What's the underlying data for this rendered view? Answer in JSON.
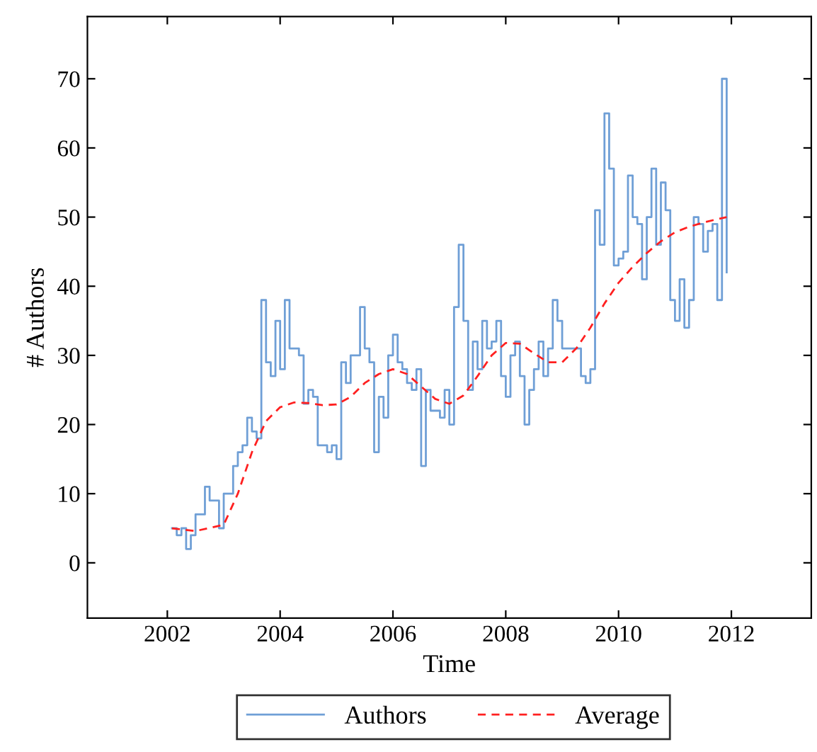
{
  "chart_data": {
    "type": "step",
    "xlabel": "Time",
    "ylabel": "# Authors",
    "x": [
      "2002-02",
      "2002-03",
      "2002-04",
      "2002-05",
      "2002-06",
      "2002-07",
      "2002-08",
      "2002-09",
      "2002-10",
      "2002-11",
      "2002-12",
      "2003-01",
      "2003-02",
      "2003-03",
      "2003-04",
      "2003-05",
      "2003-06",
      "2003-07",
      "2003-08",
      "2003-09",
      "2003-10",
      "2003-11",
      "2003-12",
      "2004-01",
      "2004-02",
      "2004-03",
      "2004-04",
      "2004-05",
      "2004-06",
      "2004-07",
      "2004-08",
      "2004-09",
      "2004-10",
      "2004-11",
      "2004-12",
      "2005-01",
      "2005-02",
      "2005-03",
      "2005-04",
      "2005-05",
      "2005-06",
      "2005-07",
      "2005-08",
      "2005-09",
      "2005-10",
      "2005-11",
      "2005-12",
      "2006-01",
      "2006-02",
      "2006-03",
      "2006-04",
      "2006-05",
      "2006-06",
      "2006-07",
      "2006-08",
      "2006-09",
      "2006-10",
      "2006-11",
      "2006-12",
      "2007-01",
      "2007-02",
      "2007-03",
      "2007-04",
      "2007-05",
      "2007-06",
      "2007-07",
      "2007-08",
      "2007-09",
      "2007-10",
      "2007-11",
      "2007-12",
      "2008-01",
      "2008-02",
      "2008-03",
      "2008-04",
      "2008-05",
      "2008-06",
      "2008-07",
      "2008-08",
      "2008-09",
      "2008-10",
      "2008-11",
      "2008-12",
      "2009-01",
      "2009-02",
      "2009-03",
      "2009-04",
      "2009-05",
      "2009-06",
      "2009-07",
      "2009-08",
      "2009-09",
      "2009-10",
      "2009-11",
      "2009-12",
      "2010-01",
      "2010-02",
      "2010-03",
      "2010-04",
      "2010-05",
      "2010-06",
      "2010-07",
      "2010-08",
      "2010-09",
      "2010-10",
      "2010-11",
      "2010-12",
      "2011-01",
      "2011-02",
      "2011-03",
      "2011-04",
      "2011-05",
      "2011-06",
      "2011-07",
      "2011-08",
      "2011-09",
      "2011-10",
      "2011-11",
      "2011-12"
    ],
    "series": [
      {
        "name": "Authors",
        "color": "#6f9fd6",
        "line_style": "solid",
        "values": [
          5,
          4,
          5,
          2,
          4,
          7,
          7,
          11,
          9,
          9,
          5,
          10,
          10,
          14,
          16,
          17,
          21,
          19,
          18,
          38,
          29,
          27,
          35,
          28,
          38,
          31,
          31,
          30,
          23,
          25,
          24,
          17,
          17,
          16,
          17,
          15,
          29,
          26,
          30,
          30,
          37,
          31,
          29,
          16,
          24,
          21,
          30,
          33,
          29,
          28,
          26,
          25,
          28,
          14,
          25,
          22,
          22,
          21,
          25,
          20,
          37,
          46,
          35,
          25,
          32,
          28,
          35,
          31,
          32,
          35,
          27,
          24,
          30,
          32,
          27,
          20,
          25,
          28,
          32,
          27,
          31,
          38,
          35,
          31,
          31,
          31,
          31,
          27,
          26,
          28,
          51,
          46,
          65,
          57,
          43,
          44,
          45,
          56,
          50,
          49,
          41,
          50,
          57,
          46,
          55,
          51,
          38,
          35,
          41,
          34,
          38,
          50,
          49,
          45,
          48,
          49,
          38,
          70,
          42
        ]
      },
      {
        "name": "Average",
        "type": "line",
        "color": "#ff2020",
        "line_style": "dashed",
        "x": [
          "2002-02",
          "2002-07",
          "2003-01",
          "2003-04",
          "2003-07",
          "2003-10",
          "2004-01",
          "2004-04",
          "2004-07",
          "2004-10",
          "2005-01",
          "2005-04",
          "2005-07",
          "2005-10",
          "2006-01",
          "2006-04",
          "2006-07",
          "2006-10",
          "2007-01",
          "2007-04",
          "2007-07",
          "2007-10",
          "2008-01",
          "2008-04",
          "2008-07",
          "2008-10",
          "2009-01",
          "2009-04",
          "2009-07",
          "2009-10",
          "2010-01",
          "2010-04",
          "2010-07",
          "2010-10",
          "2011-01",
          "2011-04",
          "2011-07",
          "2011-10",
          "2011-12"
        ],
        "values": [
          5,
          4.6,
          5.5,
          10,
          16,
          20.5,
          22.5,
          23.2,
          23.1,
          22.8,
          22.9,
          24,
          26,
          27.3,
          28,
          27.3,
          25.5,
          23.7,
          23,
          24.2,
          27,
          30,
          31.8,
          31.7,
          30.3,
          29,
          29,
          31,
          34,
          37.5,
          40.5,
          42.8,
          44.8,
          46.5,
          47.8,
          48.6,
          49.2,
          49.7,
          50
        ]
      }
    ],
    "xlim": [
      "2000-08",
      "2013-06"
    ],
    "xticks": [
      {
        "value": "2002",
        "label": "2002"
      },
      {
        "value": "2004",
        "label": "2004"
      },
      {
        "value": "2006",
        "label": "2006"
      },
      {
        "value": "2008",
        "label": "2008"
      },
      {
        "value": "2010",
        "label": "2010"
      },
      {
        "value": "2012",
        "label": "2012"
      }
    ],
    "ylim": [
      -8,
      79
    ],
    "yticks": [
      0,
      10,
      20,
      30,
      40,
      50,
      60,
      70
    ],
    "grid": false,
    "legend": "bottom",
    "marker": "none"
  }
}
